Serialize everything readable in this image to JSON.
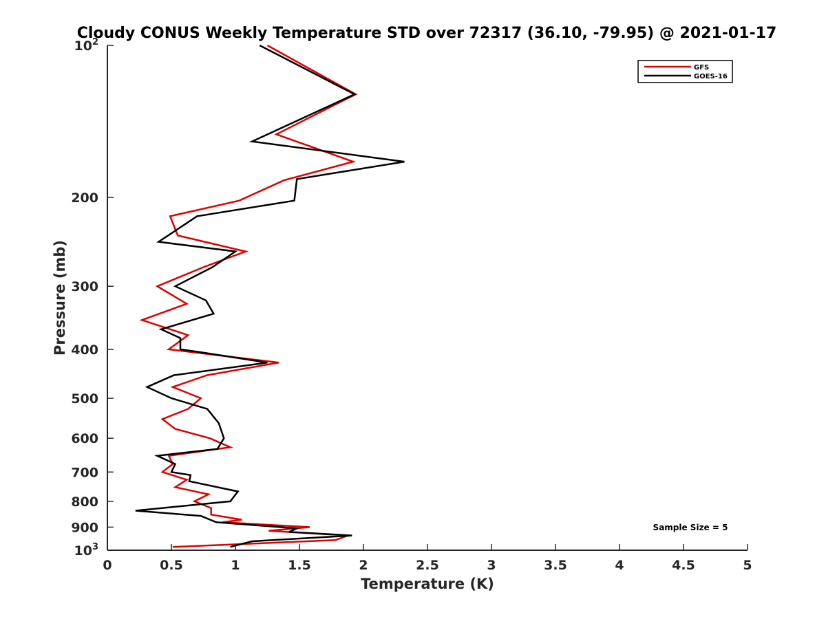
{
  "chart_data": {
    "type": "line",
    "title": "Cloudy CONUS Weekly Temperature STD over 72317 (36.10, -79.95) @ 2021-01-17",
    "xlabel": "Temperature (K)",
    "ylabel": "Pressure (mb)",
    "xlim": [
      0,
      5
    ],
    "ylim": [
      100,
      1000
    ],
    "y_scale": "log",
    "y_reversed": true,
    "grid": false,
    "legend_position": "top-right",
    "x_ticks": [
      "0",
      "0.5",
      "1",
      "1.5",
      "2",
      "2.5",
      "3",
      "3.5",
      "4",
      "4.5",
      "5"
    ],
    "x_tick_values": [
      0,
      0.5,
      1,
      1.5,
      2,
      2.5,
      3,
      3.5,
      4,
      4.5,
      5
    ],
    "y_tick_values": [
      100,
      200,
      300,
      400,
      500,
      600,
      700,
      800,
      900,
      1000
    ],
    "y_ticks": [
      {
        "base": "10",
        "exp": "2"
      },
      {
        "base": "200",
        "exp": ""
      },
      {
        "base": "300",
        "exp": ""
      },
      {
        "base": "400",
        "exp": ""
      },
      {
        "base": "500",
        "exp": ""
      },
      {
        "base": "600",
        "exp": ""
      },
      {
        "base": "700",
        "exp": ""
      },
      {
        "base": "800",
        "exp": ""
      },
      {
        "base": "900",
        "exp": ""
      },
      {
        "base": "10",
        "exp": "3"
      }
    ],
    "annotation": "Sample Size = 5",
    "series": [
      {
        "name": "GFS",
        "color": "#e00000",
        "points": [
          [
            1.25,
            100
          ],
          [
            1.94,
            125
          ],
          [
            1.32,
            150
          ],
          [
            1.92,
            170
          ],
          [
            1.38,
            185
          ],
          [
            1.03,
            203
          ],
          [
            0.49,
            218
          ],
          [
            0.55,
            238
          ],
          [
            1.08,
            256
          ],
          [
            0.75,
            275
          ],
          [
            0.39,
            300
          ],
          [
            0.62,
            325
          ],
          [
            0.27,
            350
          ],
          [
            0.63,
            375
          ],
          [
            0.48,
            400
          ],
          [
            1.34,
            425
          ],
          [
            0.78,
            450
          ],
          [
            0.51,
            475
          ],
          [
            0.73,
            500
          ],
          [
            0.63,
            525
          ],
          [
            0.43,
            550
          ],
          [
            0.53,
            575
          ],
          [
            0.8,
            600
          ],
          [
            0.96,
            625
          ],
          [
            0.48,
            650
          ],
          [
            0.51,
            675
          ],
          [
            0.43,
            700
          ],
          [
            0.62,
            725
          ],
          [
            0.53,
            750
          ],
          [
            0.79,
            775
          ],
          [
            0.68,
            800
          ],
          [
            0.81,
            825
          ],
          [
            0.81,
            850
          ],
          [
            1.05,
            870
          ],
          [
            0.9,
            880
          ],
          [
            1.58,
            900
          ],
          [
            1.26,
            915
          ],
          [
            1.88,
            935
          ],
          [
            1.78,
            955
          ],
          [
            0.51,
            985
          ]
        ]
      },
      {
        "name": "GOES-16",
        "color": "#000000",
        "points": [
          [
            1.19,
            100
          ],
          [
            1.93,
            125
          ],
          [
            1.13,
            155
          ],
          [
            2.32,
            170
          ],
          [
            1.48,
            184
          ],
          [
            1.46,
            203
          ],
          [
            0.7,
            218
          ],
          [
            0.4,
            245
          ],
          [
            1.0,
            256
          ],
          [
            0.82,
            275
          ],
          [
            0.53,
            300
          ],
          [
            0.77,
            320
          ],
          [
            0.83,
            340
          ],
          [
            0.42,
            365
          ],
          [
            0.57,
            380
          ],
          [
            0.57,
            400
          ],
          [
            0.72,
            405
          ],
          [
            1.25,
            425
          ],
          [
            0.52,
            450
          ],
          [
            0.31,
            475
          ],
          [
            0.5,
            500
          ],
          [
            0.78,
            525
          ],
          [
            0.87,
            560
          ],
          [
            0.91,
            600
          ],
          [
            0.86,
            630
          ],
          [
            0.39,
            650
          ],
          [
            0.53,
            675
          ],
          [
            0.5,
            700
          ],
          [
            0.65,
            710
          ],
          [
            0.64,
            730
          ],
          [
            1.02,
            765
          ],
          [
            0.96,
            800
          ],
          [
            0.22,
            835
          ],
          [
            0.73,
            855
          ],
          [
            0.85,
            880
          ],
          [
            1.48,
            905
          ],
          [
            1.42,
            920
          ],
          [
            1.91,
            935
          ],
          [
            1.13,
            960
          ],
          [
            0.96,
            985
          ]
        ]
      }
    ]
  }
}
